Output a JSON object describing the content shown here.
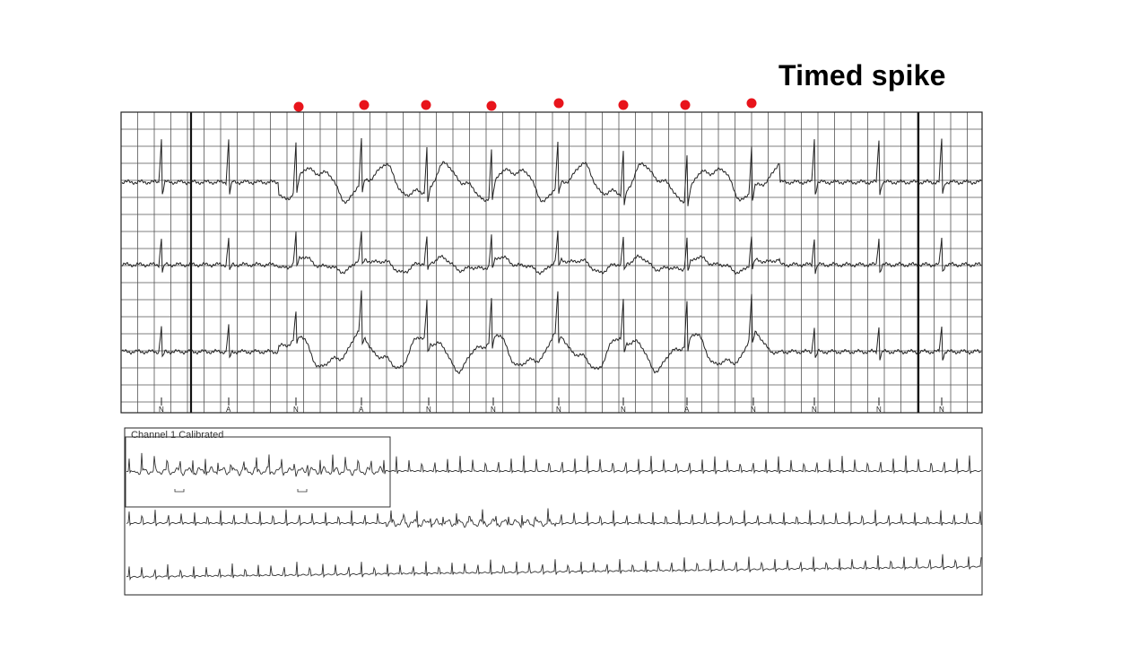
{
  "slide": {
    "title": "Timed spike"
  },
  "top_strip": {
    "spike_marker_color": "#e8141b",
    "spike_marker_count": 8,
    "beat_annotations": [
      "N",
      "A",
      "N",
      "A",
      "N",
      "N",
      "N",
      "N",
      "A",
      "N",
      "N",
      "N",
      "N"
    ]
  },
  "bottom_strip": {
    "inset_label": "Channel 1 Calibrated"
  }
}
